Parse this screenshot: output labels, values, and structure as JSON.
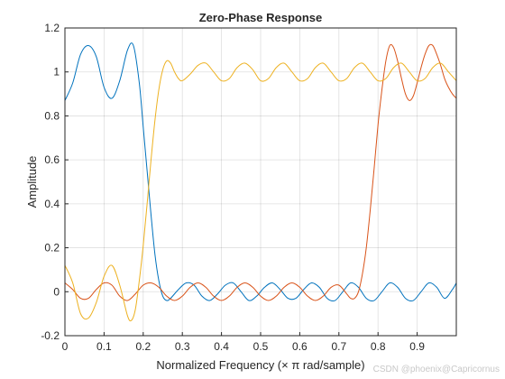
{
  "chart_data": {
    "type": "line",
    "title": "Zero-Phase Response",
    "xlabel": "Normalized Frequency (× π rad/sample)",
    "ylabel": "Amplitude",
    "xlim": [
      0,
      1
    ],
    "ylim": [
      -0.2,
      1.2
    ],
    "x_ticks": [
      "0",
      "0.1",
      "0.2",
      "0.3",
      "0.4",
      "0.5",
      "0.6",
      "0.7",
      "0.8",
      "0.9"
    ],
    "y_ticks": [
      "-0.2",
      "0",
      "0.2",
      "0.4",
      "0.6",
      "0.8",
      "1",
      "1.2"
    ],
    "grid": true,
    "series": [
      {
        "color": "#0072BD",
        "x": [
          0,
          0.02,
          0.04,
          0.06,
          0.08,
          0.1,
          0.12,
          0.14,
          0.16,
          0.175,
          0.19,
          0.2,
          0.21,
          0.22,
          0.23,
          0.24,
          0.25,
          0.26,
          0.27,
          0.29,
          0.31,
          0.33,
          0.35,
          0.37,
          0.39,
          0.41,
          0.43,
          0.45,
          0.47,
          0.49,
          0.51,
          0.53,
          0.55,
          0.57,
          0.59,
          0.61,
          0.63,
          0.65,
          0.67,
          0.69,
          0.71,
          0.73,
          0.75,
          0.77,
          0.79,
          0.81,
          0.83,
          0.85,
          0.87,
          0.89,
          0.91,
          0.93,
          0.95,
          0.97,
          0.99,
          1.0
        ],
        "y": [
          0.87,
          0.95,
          1.08,
          1.12,
          1.07,
          0.93,
          0.88,
          0.96,
          1.1,
          1.12,
          0.95,
          0.75,
          0.55,
          0.35,
          0.17,
          0.05,
          -0.02,
          -0.04,
          -0.03,
          0.01,
          0.04,
          0.03,
          -0.02,
          -0.04,
          -0.01,
          0.03,
          0.04,
          0.0,
          -0.04,
          -0.02,
          0.02,
          0.04,
          0.01,
          -0.03,
          -0.03,
          0.01,
          0.04,
          0.02,
          -0.03,
          -0.04,
          0.0,
          0.04,
          0.02,
          -0.03,
          -0.04,
          0.0,
          0.04,
          0.02,
          -0.03,
          -0.04,
          0.0,
          0.04,
          0.02,
          -0.03,
          0.01,
          0.04
        ]
      },
      {
        "color": "#D95319",
        "x": [
          0,
          0.02,
          0.04,
          0.06,
          0.08,
          0.1,
          0.12,
          0.14,
          0.16,
          0.18,
          0.2,
          0.22,
          0.24,
          0.26,
          0.28,
          0.3,
          0.32,
          0.34,
          0.36,
          0.38,
          0.4,
          0.42,
          0.44,
          0.46,
          0.48,
          0.5,
          0.52,
          0.54,
          0.56,
          0.58,
          0.6,
          0.62,
          0.64,
          0.66,
          0.68,
          0.7,
          0.72,
          0.73,
          0.74,
          0.75,
          0.76,
          0.77,
          0.78,
          0.79,
          0.8,
          0.81,
          0.82,
          0.83,
          0.84,
          0.85,
          0.86,
          0.87,
          0.88,
          0.89,
          0.9,
          0.91,
          0.92,
          0.93,
          0.94,
          0.95,
          0.96,
          0.97,
          0.98,
          0.99,
          1.0
        ],
        "y": [
          0.04,
          0.01,
          -0.03,
          -0.03,
          0.01,
          0.04,
          0.03,
          -0.02,
          -0.04,
          -0.01,
          0.03,
          0.04,
          0.02,
          -0.02,
          -0.04,
          -0.02,
          0.02,
          0.04,
          0.02,
          -0.02,
          -0.04,
          -0.02,
          0.02,
          0.04,
          0.02,
          -0.02,
          -0.04,
          -0.02,
          0.02,
          0.04,
          0.02,
          -0.02,
          -0.04,
          -0.02,
          0.02,
          0.03,
          -0.01,
          -0.03,
          -0.03,
          0.0,
          0.08,
          0.2,
          0.37,
          0.56,
          0.76,
          0.92,
          1.05,
          1.12,
          1.11,
          1.05,
          0.97,
          0.9,
          0.87,
          0.89,
          0.95,
          1.02,
          1.08,
          1.12,
          1.12,
          1.08,
          1.03,
          0.97,
          0.93,
          0.9,
          0.88
        ]
      },
      {
        "color": "#EDB120",
        "x": [
          0,
          0.02,
          0.04,
          0.06,
          0.08,
          0.1,
          0.12,
          0.14,
          0.16,
          0.17,
          0.18,
          0.19,
          0.2,
          0.21,
          0.22,
          0.23,
          0.24,
          0.25,
          0.26,
          0.27,
          0.28,
          0.29,
          0.3,
          0.32,
          0.34,
          0.36,
          0.38,
          0.4,
          0.42,
          0.44,
          0.46,
          0.48,
          0.5,
          0.52,
          0.54,
          0.56,
          0.58,
          0.6,
          0.62,
          0.64,
          0.66,
          0.68,
          0.7,
          0.72,
          0.74,
          0.76,
          0.78,
          0.8,
          0.82,
          0.84,
          0.86,
          0.88,
          0.9,
          0.92,
          0.94,
          0.96,
          0.98,
          1.0
        ],
        "y": [
          0.12,
          0.04,
          -0.1,
          -0.12,
          -0.05,
          0.07,
          0.12,
          0.03,
          -0.11,
          -0.13,
          -0.08,
          0.05,
          0.21,
          0.4,
          0.6,
          0.78,
          0.92,
          1.01,
          1.05,
          1.04,
          1.0,
          0.97,
          0.96,
          0.99,
          1.03,
          1.04,
          1.0,
          0.96,
          0.97,
          1.02,
          1.04,
          1.01,
          0.96,
          0.97,
          1.02,
          1.04,
          1.0,
          0.96,
          0.97,
          1.02,
          1.04,
          1.0,
          0.96,
          0.97,
          1.02,
          1.04,
          1.0,
          0.96,
          0.97,
          1.02,
          1.04,
          1.0,
          0.96,
          0.97,
          1.02,
          1.04,
          1.0,
          0.96
        ]
      }
    ]
  },
  "watermark": "CSDN @phoenix@Capricornus"
}
